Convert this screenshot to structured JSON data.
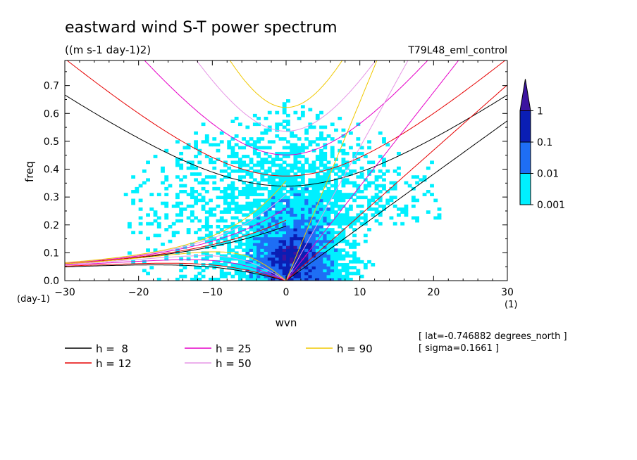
{
  "chart_data": {
    "type": "heatmap",
    "title": "eastward wind S-T power spectrum",
    "units": "((m s-1 day-1)2)",
    "run_label": "T79L48_eml_control",
    "xlabel": "wvn",
    "ylabel": "freq",
    "x_unit": "(1)",
    "y_unit": "(day-1)",
    "xlim": [
      -30,
      30
    ],
    "ylim": [
      0,
      0.79
    ],
    "x_ticks": [
      -30,
      -20,
      -10,
      0,
      10,
      20,
      30
    ],
    "x_tick_labels": [
      "−30",
      "−20",
      "−10",
      "0",
      "10",
      "20",
      "30"
    ],
    "y_ticks": [
      0,
      0.1,
      0.2,
      0.3,
      0.4,
      0.5,
      0.6,
      0.7
    ],
    "y_tick_labels": [
      "0.0",
      "0.1",
      "0.2",
      "0.3",
      "0.4",
      "0.5",
      "0.6",
      "0.7"
    ],
    "colorbar": {
      "levels": [
        "0.001",
        "0.01",
        "0.1",
        "1"
      ],
      "colors": [
        "#00f0ff",
        "#1e6ef5",
        "#0a1eb4",
        "#3c14a0"
      ]
    },
    "dispersion_curves": [
      {
        "label": "h =  8",
        "h": 8,
        "color": "#000000"
      },
      {
        "label": "h = 12",
        "h": 12,
        "color": "#e60000"
      },
      {
        "label": "h = 25",
        "h": 25,
        "color": "#e600c8"
      },
      {
        "label": "h = 50",
        "h": 50,
        "color": "#e696e6"
      },
      {
        "label": "h = 90",
        "h": 90,
        "color": "#f0c800"
      }
    ],
    "annotations": [
      "[ lat=-0.746882 degrees_north ]",
      "[ sigma=0.1661 ]"
    ]
  }
}
